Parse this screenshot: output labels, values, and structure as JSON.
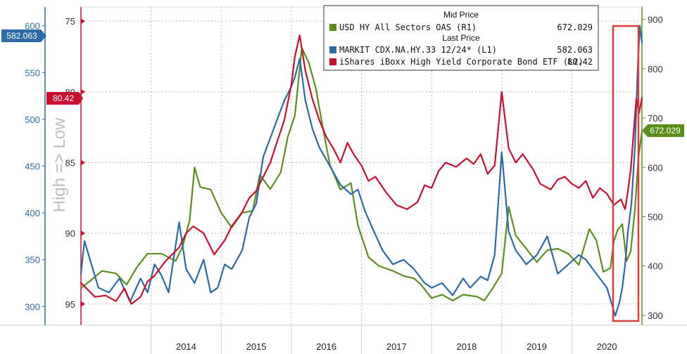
{
  "chart_data": {
    "type": "line",
    "watermark": "High => Low",
    "legend": {
      "heading_mid": "Mid Price",
      "heading_last": "Last Price",
      "entries": [
        {
          "label": "USD HY All Sectors OAS  (R1)",
          "value": "672.029",
          "color": "#5a8f1c"
        },
        {
          "label": "MARKIT CDX.NA.HY.33 12/24*  (L1)",
          "value": "582.063",
          "color": "#2a6aa6"
        },
        {
          "label": "iShares iBoxx High Yield Corporate Bond ETF  (L2)",
          "value": "80.42",
          "color": "#c8102e"
        }
      ]
    },
    "x_years": [
      "2014",
      "2015",
      "2016",
      "2017",
      "2018",
      "2019",
      "2020"
    ],
    "axes": {
      "left_outer": {
        "series": "MARKIT CDX.NA.HY.33 12/24*  (L1)",
        "ticks": [
          "600",
          "550",
          "500",
          "450",
          "400",
          "350",
          "300"
        ],
        "range": [
          280,
          620
        ]
      },
      "left_inner": {
        "series": "iShares iBoxx High Yield Corporate Bond ETF  (L2)",
        "ticks": [
          "75",
          "80",
          "85",
          "90",
          "95"
        ],
        "range": [
          96.5,
          74
        ],
        "inverted": true
      },
      "right": {
        "series": "USD HY All Sectors OAS  (R1)",
        "ticks": [
          "900",
          "800",
          "700",
          "600",
          "500",
          "400",
          "300"
        ],
        "range": [
          280,
          925
        ]
      }
    },
    "badges": {
      "blue_last": "582.063",
      "red_last": "80.42",
      "green_last": "672.029"
    },
    "series": [
      {
        "name": "USD HY All Sectors OAS  (R1)",
        "axis": "right",
        "color": "#5a8f1c",
        "points": [
          [
            2013.0,
            355
          ],
          [
            2013.15,
            372
          ],
          [
            2013.3,
            390
          ],
          [
            2013.5,
            385
          ],
          [
            2013.65,
            362
          ],
          [
            2013.8,
            398
          ],
          [
            2013.95,
            425
          ],
          [
            2014.15,
            425
          ],
          [
            2014.35,
            410
          ],
          [
            2014.45,
            440
          ],
          [
            2014.55,
            492
          ],
          [
            2014.62,
            600
          ],
          [
            2014.7,
            560
          ],
          [
            2014.85,
            555
          ],
          [
            2015.0,
            508
          ],
          [
            2015.15,
            478
          ],
          [
            2015.3,
            508
          ],
          [
            2015.45,
            512
          ],
          [
            2015.55,
            585
          ],
          [
            2015.7,
            556
          ],
          [
            2015.85,
            590
          ],
          [
            2015.95,
            662
          ],
          [
            2016.05,
            705
          ],
          [
            2016.15,
            842
          ],
          [
            2016.25,
            812
          ],
          [
            2016.35,
            760
          ],
          [
            2016.45,
            680
          ],
          [
            2016.55,
            605
          ],
          [
            2016.7,
            555
          ],
          [
            2016.85,
            568
          ],
          [
            2016.95,
            482
          ],
          [
            2017.1,
            418
          ],
          [
            2017.25,
            400
          ],
          [
            2017.45,
            390
          ],
          [
            2017.6,
            380
          ],
          [
            2017.75,
            375
          ],
          [
            2017.85,
            362
          ],
          [
            2018.0,
            335
          ],
          [
            2018.15,
            342
          ],
          [
            2018.3,
            330
          ],
          [
            2018.45,
            342
          ],
          [
            2018.55,
            340
          ],
          [
            2018.65,
            338
          ],
          [
            2018.75,
            330
          ],
          [
            2018.85,
            350
          ],
          [
            2019.0,
            385
          ],
          [
            2019.1,
            520
          ],
          [
            2019.2,
            462
          ],
          [
            2019.35,
            435
          ],
          [
            2019.5,
            408
          ],
          [
            2019.65,
            432
          ],
          [
            2019.8,
            435
          ],
          [
            2019.95,
            425
          ],
          [
            2020.1,
            402
          ],
          [
            2020.25,
            475
          ],
          [
            2020.35,
            452
          ],
          [
            2020.45,
            388
          ],
          [
            2020.55,
            396
          ],
          [
            2020.6,
            450
          ],
          [
            2020.65,
            472
          ],
          [
            2020.72,
            485
          ],
          [
            2020.78,
            410
          ],
          [
            2020.84,
            430
          ],
          [
            2020.9,
            515
          ],
          [
            2020.95,
            620
          ],
          [
            2021.0,
            672
          ]
        ]
      },
      {
        "name": "MARKIT CDX.NA.HY.33 12/24*  (L1)",
        "axis": "left_outer",
        "color": "#2a6aa6",
        "points": [
          [
            2013.0,
            335
          ],
          [
            2013.05,
            370
          ],
          [
            2013.15,
            345
          ],
          [
            2013.25,
            320
          ],
          [
            2013.4,
            315
          ],
          [
            2013.55,
            330
          ],
          [
            2013.7,
            305
          ],
          [
            2013.85,
            330
          ],
          [
            2013.95,
            315
          ],
          [
            2014.05,
            345
          ],
          [
            2014.15,
            333
          ],
          [
            2014.25,
            315
          ],
          [
            2014.4,
            390
          ],
          [
            2014.5,
            340
          ],
          [
            2014.62,
            325
          ],
          [
            2014.75,
            350
          ],
          [
            2014.85,
            315
          ],
          [
            2014.95,
            320
          ],
          [
            2015.05,
            345
          ],
          [
            2015.15,
            340
          ],
          [
            2015.3,
            360
          ],
          [
            2015.4,
            395
          ],
          [
            2015.5,
            410
          ],
          [
            2015.6,
            460
          ],
          [
            2015.7,
            480
          ],
          [
            2015.8,
            500
          ],
          [
            2015.9,
            520
          ],
          [
            2016.0,
            535
          ],
          [
            2016.05,
            545
          ],
          [
            2016.12,
            565
          ],
          [
            2016.2,
            520
          ],
          [
            2016.3,
            490
          ],
          [
            2016.4,
            470
          ],
          [
            2016.55,
            450
          ],
          [
            2016.7,
            430
          ],
          [
            2016.85,
            420
          ],
          [
            2016.95,
            425
          ],
          [
            2017.05,
            402
          ],
          [
            2017.15,
            385
          ],
          [
            2017.3,
            360
          ],
          [
            2017.45,
            345
          ],
          [
            2017.6,
            350
          ],
          [
            2017.75,
            340
          ],
          [
            2017.9,
            325
          ],
          [
            2018.0,
            320
          ],
          [
            2018.15,
            325
          ],
          [
            2018.3,
            312
          ],
          [
            2018.45,
            330
          ],
          [
            2018.55,
            320
          ],
          [
            2018.7,
            332
          ],
          [
            2018.8,
            328
          ],
          [
            2018.9,
            355
          ],
          [
            2019.0,
            465
          ],
          [
            2019.1,
            380
          ],
          [
            2019.2,
            360
          ],
          [
            2019.35,
            345
          ],
          [
            2019.5,
            355
          ],
          [
            2019.65,
            375
          ],
          [
            2019.8,
            335
          ],
          [
            2019.95,
            345
          ],
          [
            2020.1,
            355
          ],
          [
            2020.2,
            350
          ],
          [
            2020.3,
            340
          ],
          [
            2020.4,
            330
          ],
          [
            2020.5,
            320
          ],
          [
            2020.58,
            300
          ],
          [
            2020.62,
            290
          ],
          [
            2020.68,
            305
          ],
          [
            2020.72,
            320
          ],
          [
            2020.76,
            345
          ],
          [
            2020.8,
            380
          ],
          [
            2020.85,
            410
          ],
          [
            2020.9,
            470
          ],
          [
            2020.94,
            555
          ],
          [
            2020.97,
            600
          ],
          [
            2021.0,
            582
          ]
        ]
      },
      {
        "name": "iShares iBoxx High Yield Corporate Bond ETF  (L2)",
        "axis": "left_inner",
        "color": "#c8102e",
        "points": [
          [
            2013.0,
            93.5
          ],
          [
            2013.1,
            94
          ],
          [
            2013.2,
            94.5
          ],
          [
            2013.35,
            94.4
          ],
          [
            2013.5,
            94.8
          ],
          [
            2013.62,
            93.9
          ],
          [
            2013.72,
            95.0
          ],
          [
            2013.85,
            94.5
          ],
          [
            2013.95,
            93.4
          ],
          [
            2014.05,
            93.0
          ],
          [
            2014.2,
            92.0
          ],
          [
            2014.4,
            91.0
          ],
          [
            2014.5,
            90.0
          ],
          [
            2014.6,
            89.5
          ],
          [
            2014.75,
            90.0
          ],
          [
            2014.9,
            91.5
          ],
          [
            2015.05,
            90.5
          ],
          [
            2015.15,
            89.5
          ],
          [
            2015.3,
            88.5
          ],
          [
            2015.4,
            87.5
          ],
          [
            2015.5,
            87.0
          ],
          [
            2015.6,
            86.0
          ],
          [
            2015.7,
            85.0
          ],
          [
            2015.8,
            83.5
          ],
          [
            2015.9,
            82.0
          ],
          [
            2016.0,
            79.5
          ],
          [
            2016.05,
            77.5
          ],
          [
            2016.12,
            76.0
          ],
          [
            2016.2,
            78.5
          ],
          [
            2016.3,
            80.5
          ],
          [
            2016.4,
            82.0
          ],
          [
            2016.5,
            83.2
          ],
          [
            2016.6,
            84.0
          ],
          [
            2016.7,
            85.0
          ],
          [
            2016.8,
            83.6
          ],
          [
            2016.9,
            84.5
          ],
          [
            2017.0,
            85.2
          ],
          [
            2017.1,
            86.3
          ],
          [
            2017.2,
            86.0
          ],
          [
            2017.35,
            87.1
          ],
          [
            2017.5,
            88.0
          ],
          [
            2017.65,
            88.3
          ],
          [
            2017.8,
            87.8
          ],
          [
            2017.9,
            86.6
          ],
          [
            2018.0,
            86.8
          ],
          [
            2018.1,
            85.6
          ],
          [
            2018.2,
            85.0
          ],
          [
            2018.35,
            85.3
          ],
          [
            2018.5,
            84.7
          ],
          [
            2018.6,
            85.1
          ],
          [
            2018.7,
            84.4
          ],
          [
            2018.8,
            85.8
          ],
          [
            2018.9,
            85.2
          ],
          [
            2019.0,
            80.0
          ],
          [
            2019.05,
            82.0
          ],
          [
            2019.1,
            84.0
          ],
          [
            2019.2,
            85.0
          ],
          [
            2019.3,
            84.4
          ],
          [
            2019.45,
            85.5
          ],
          [
            2019.55,
            86.5
          ],
          [
            2019.7,
            86.9
          ],
          [
            2019.8,
            86.2
          ],
          [
            2019.9,
            86.0
          ],
          [
            2020.0,
            86.5
          ],
          [
            2020.1,
            86.8
          ],
          [
            2020.2,
            86.3
          ],
          [
            2020.3,
            87.5
          ],
          [
            2020.4,
            86.8
          ],
          [
            2020.5,
            87.2
          ],
          [
            2020.6,
            88.0
          ],
          [
            2020.7,
            87.6
          ],
          [
            2020.76,
            88.3
          ],
          [
            2020.8,
            87.0
          ],
          [
            2020.84,
            85.5
          ],
          [
            2020.88,
            83.0
          ],
          [
            2020.92,
            80.5
          ],
          [
            2020.96,
            81.5
          ],
          [
            2021.0,
            80.42
          ]
        ]
      }
    ]
  }
}
